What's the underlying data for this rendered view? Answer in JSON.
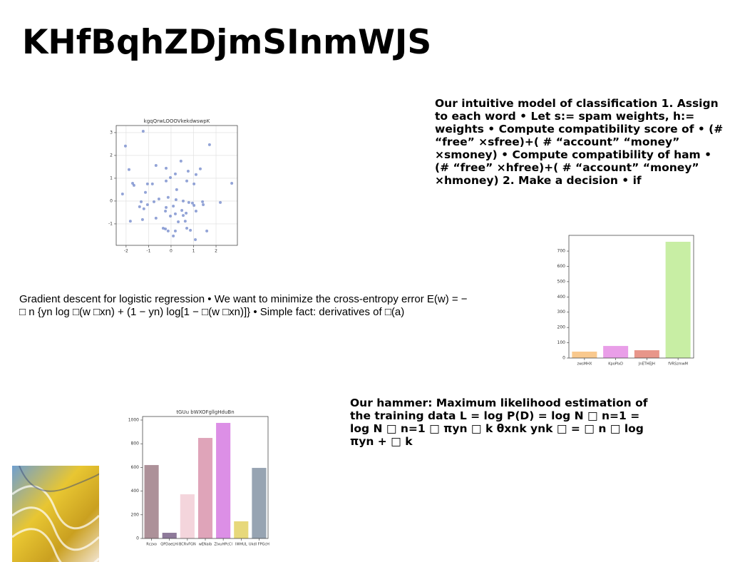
{
  "title": "KHfBqhZDjmSInmWJS",
  "text_right": "Our intuitive model of classification 1. Assign to each word • Let s:= spam weights, h:= weights • Compute compatibility score of • (# “free” ×sfree)+( # “account” “money” ×smoney) • Compute compatibility of ham • (# “free” ×hfree)+( # “account” “money” ×hmoney) 2. Make a decision • if",
  "text_middle": "Gradient descent for logistic regression • We want to minimize the cross-entropy error E(w) = − □ n {yn log □(w □xn) + (1 − yn) log[1 − □(w □xn)]} • Simple fact: derivatives of □(a)",
  "text_bottom": "Our hammer: Maximum likelihood estimation of the training data L = log P(D) = log N □ n=1 = log N □ n=1 □ πyn □ k θxnk ynk □ = □ n □ log πyn + □ k",
  "chart_data": [
    {
      "type": "scatter",
      "title": "kgqQrwLOOOVkekdwswpK",
      "color": "#6f86c9",
      "grid": true,
      "x": [
        -1.24,
        -2.03,
        1.71,
        -1.87,
        -1.71,
        -1.65,
        -2.16,
        -0.67,
        -0.22,
        0.44,
        0.76,
        0.19,
        -0.03,
        1.11,
        1.3,
        2.7,
        -1.05,
        -0.83,
        -0.22,
        0.7,
        1.02,
        0.25,
        -1.14,
        -0.54,
        -1.33,
        -1.4,
        -1.05,
        -0.76,
        -0.13,
        0.22,
        0.54,
        0.79,
        0.95,
        1.02,
        1.4,
        1.43,
        2.19,
        -1.21,
        -0.22,
        -0.25,
        0.1,
        0.48,
        1.11,
        0.19,
        -0.03,
        0.54,
        0.67,
        -0.67,
        0.32,
        0.63,
        -1.81,
        -1.27,
        -0.35,
        -0.25,
        -0.13,
        0.19,
        0.7,
        0.86,
        1.59,
        0.1,
        1.08
      ],
      "values": [
        3.06,
        2.41,
        2.47,
        1.38,
        0.78,
        0.69,
        0.31,
        1.56,
        1.44,
        1.75,
        1.31,
        1.19,
        1.03,
        1.16,
        1.41,
        0.78,
        0.75,
        0.75,
        0.88,
        0.88,
        0.75,
        0.5,
        0.38,
        0.09,
        -0.03,
        -0.25,
        -0.16,
        -0.03,
        0.16,
        0.06,
        0.0,
        -0.06,
        -0.09,
        -0.19,
        -0.03,
        -0.16,
        -0.06,
        -0.34,
        -0.28,
        -0.44,
        -0.22,
        -0.41,
        -0.44,
        -0.56,
        -0.66,
        -0.63,
        -0.53,
        -0.75,
        -0.91,
        -0.88,
        -0.88,
        -0.81,
        -1.19,
        -1.22,
        -1.31,
        -1.31,
        -1.19,
        -1.28,
        -1.31,
        -1.53,
        -1.69
      ],
      "xlim": [
        -2.44,
        2.95
      ],
      "xticks": [
        -2,
        -1,
        0,
        1,
        2
      ],
      "ylim": [
        -1.94,
        3.31
      ],
      "yticks": [
        -1,
        0,
        1,
        2,
        3
      ]
    },
    {
      "type": "bar",
      "categories": [
        "zwsMHX",
        "KpoPlxD",
        "JnETHEJH",
        "fVRSzmwM"
      ],
      "values": [
        42,
        79,
        51,
        761
      ],
      "colors": [
        "#f9c98e",
        "#e99ee8",
        "#e8968a",
        "#c8eea4"
      ],
      "ylim": [
        0,
        803
      ],
      "yticks": [
        0,
        100,
        200,
        300,
        400,
        500,
        600,
        700
      ],
      "grid": false
    },
    {
      "type": "bar",
      "title": "tGUu bWXOFgllgHduBn",
      "categories": [
        "Rczxo",
        "QPDaeLHi",
        "BCRvFGN",
        "wENaib",
        "ZIxuHPcCl",
        "IWHUL",
        "Ukdl FPGcH"
      ],
      "values": [
        620,
        48,
        373,
        849,
        976,
        145,
        596
      ],
      "colors": [
        "#ad9199",
        "#8e7a9a",
        "#f4d5dc",
        "#dfa4b9",
        "#dc8fe6",
        "#e7d87b",
        "#97a4b2"
      ],
      "ylim": [
        0,
        1030
      ],
      "yticks": [
        0,
        200,
        400,
        600,
        800,
        1000
      ],
      "grid": false
    }
  ]
}
